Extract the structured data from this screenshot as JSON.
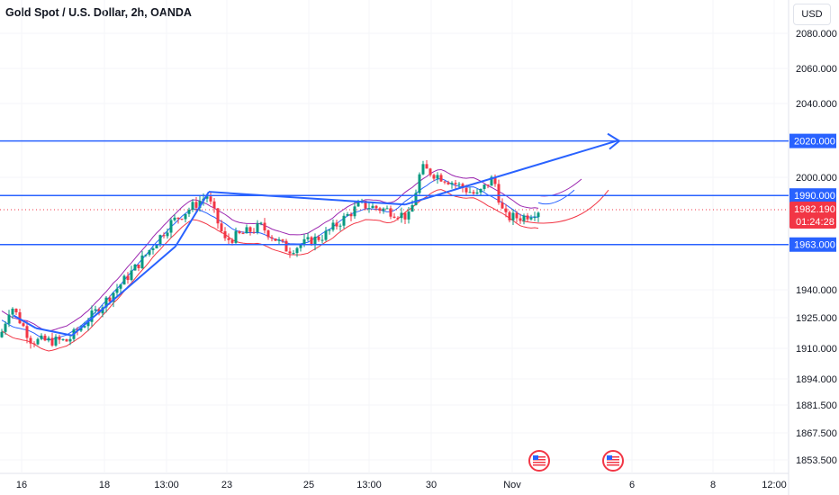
{
  "header": {
    "title": "Gold Spot / U.S. Dollar, 2h, OANDA",
    "currency": "USD"
  },
  "chart_data": {
    "type": "candlestick",
    "title": "Gold Spot / U.S. Dollar, 2h, OANDA",
    "y_axis": {
      "ticks": [
        2080,
        2060,
        2040,
        2000,
        1940,
        1925,
        1910,
        1894,
        1881.5,
        1867.5,
        1853.5
      ],
      "tick_labels": [
        "2080.000",
        "2060.000",
        "2040.000",
        "2000.000",
        "1940.000",
        "1925.000",
        "1910.000",
        "1894.000",
        "1881.500",
        "1867.500",
        "1853.500"
      ]
    },
    "x_axis": {
      "tick_labels": [
        "16",
        "18",
        "13:00",
        "23",
        "25",
        "13:00",
        "30",
        "Nov",
        "6",
        "8",
        "12:00"
      ]
    },
    "horizontal_levels": [
      {
        "price": 2020.0,
        "label": "2020.000",
        "color": "#2962ff"
      },
      {
        "price": 1990.0,
        "label": "1990.000",
        "color": "#2962ff"
      },
      {
        "price": 1963.0,
        "label": "1963.000",
        "color": "#2962ff"
      }
    ],
    "last_price": {
      "label": "1982.190",
      "countdown": "01:24:28",
      "color": "#f23645"
    },
    "event_icons": [
      "us-flag-icon",
      "us-flag-icon"
    ],
    "colors": {
      "up": "#089981",
      "down": "#f23645",
      "trend": "#2962ff",
      "band_upper": "#9c27b0",
      "band_lower": "#f23645",
      "basis": "#2962ff"
    }
  }
}
